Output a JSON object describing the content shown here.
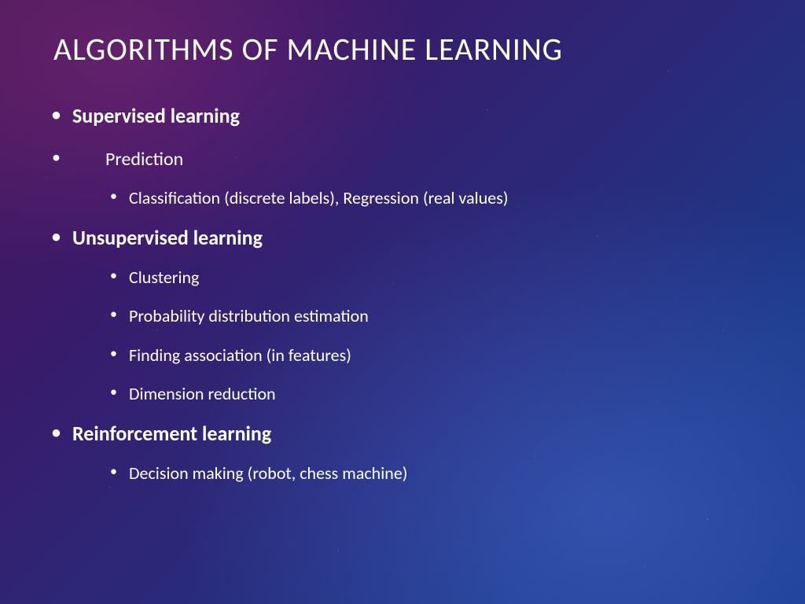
{
  "slide": {
    "title": "ALGORITHMS  OF MACHINE LEARNING",
    "background": {
      "gradient_from": "#4a1a5a",
      "gradient_mid": "#2a2a7a",
      "gradient_to": "#183a90",
      "text_color": "#ffffff"
    },
    "title_style": {
      "fontsize": 40,
      "weight": 300,
      "letter_spacing": 1
    },
    "bullets": {
      "supervised": {
        "label": "Supervised learning",
        "bold": true
      },
      "prediction": {
        "label": "Prediction",
        "bold": false,
        "indented": true,
        "sub": [
          "Classification (discrete labels), Regression (real values)"
        ]
      },
      "unsupervised": {
        "label": "Unsupervised learning",
        "bold": true,
        "sub": [
          "Clustering",
          "Probability distribution estimation",
          "Finding association (in features)",
          "Dimension reduction"
        ]
      },
      "reinforcement": {
        "label": "Reinforcement learning",
        "bold": true,
        "sub": [
          "Decision making (robot, chess machine)"
        ]
      }
    },
    "typography": {
      "lvl1_fontsize": 26,
      "lvl2_fontsize": 22,
      "line_gap": 24,
      "font_family": "Segoe UI Light / Calibri"
    }
  }
}
